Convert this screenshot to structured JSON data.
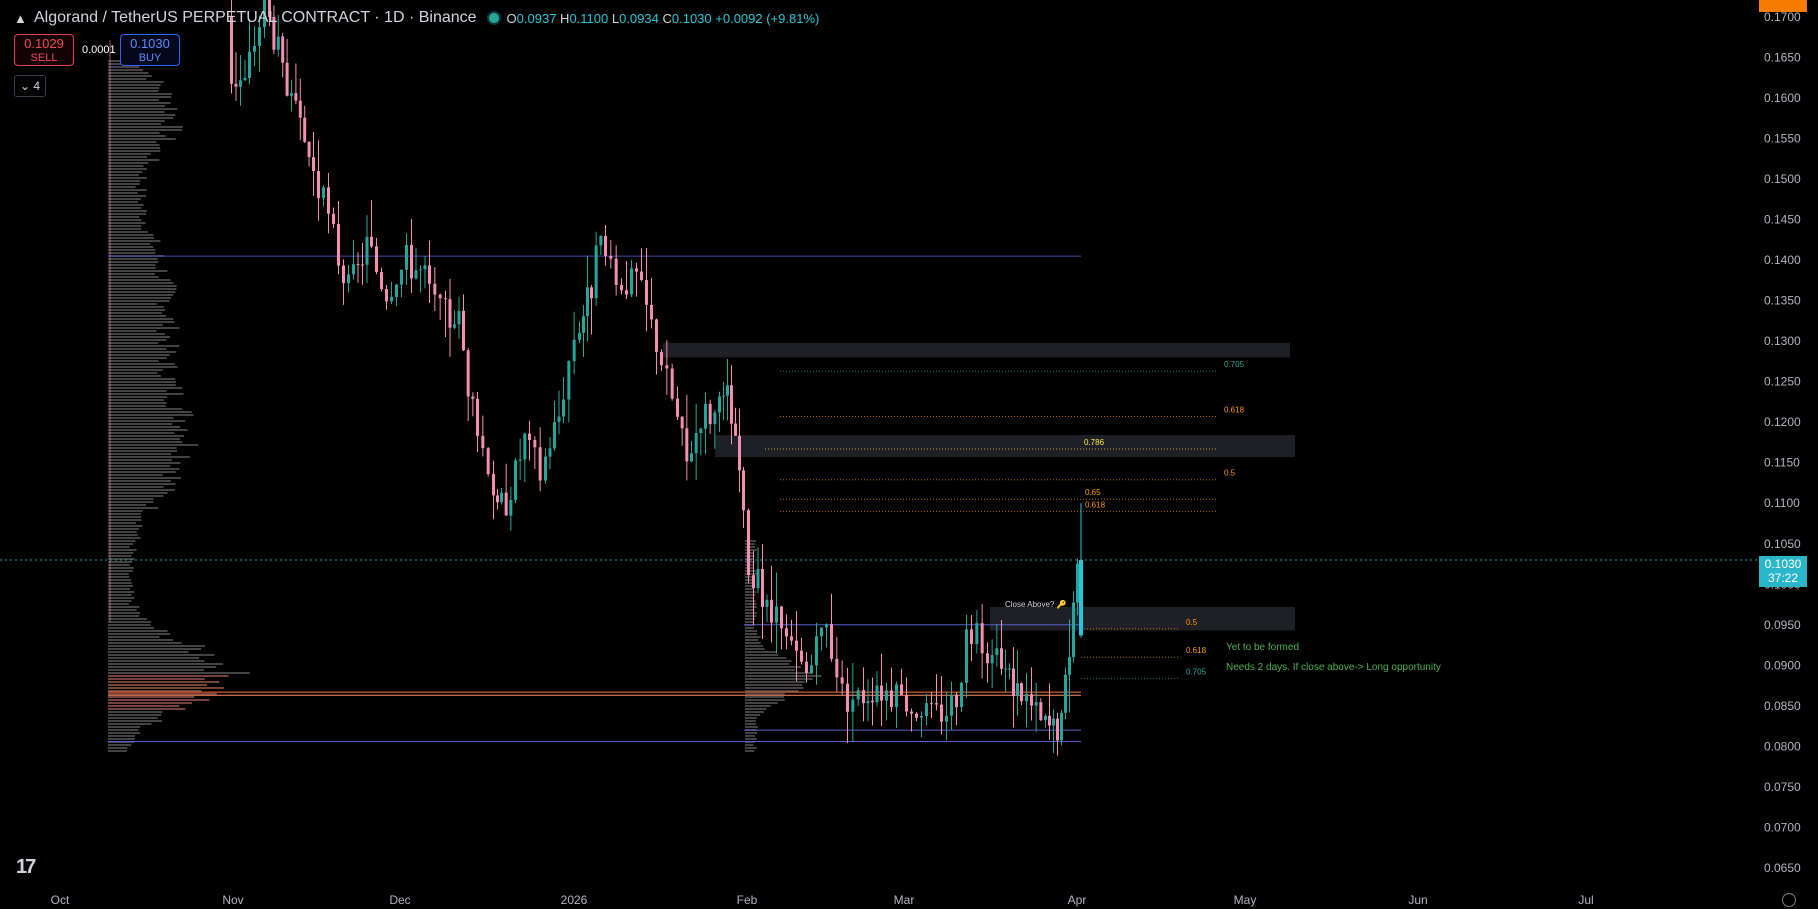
{
  "header": {
    "symbol_title": "Algorand / TetherUS PERPETUAL CONTRACT · 1D · Binance",
    "ohlc": {
      "open_label": "O",
      "open": "0.0937",
      "high_label": "H",
      "high": "0.1100",
      "low_label": "L",
      "low": "0.0934",
      "close_label": "C",
      "close": "0.1030",
      "change": "+0.0092 (+9.81%)"
    }
  },
  "trade": {
    "sell_price": "0.1029",
    "sell_label": "SELL",
    "buy_price": "0.1030",
    "buy_label": "BUY",
    "spread": "0.0001"
  },
  "indicators_toggle": {
    "count": "4"
  },
  "price_tag": {
    "price": "0.1030",
    "countdown": "37:22"
  },
  "icons": [
    "algorand-logo-icon",
    "chevron-down-icon",
    "tradingview-logo-icon",
    "settings-icon"
  ],
  "colors": {
    "up": "#26a69a",
    "down": "#f48fb1",
    "accent": "#2962ff",
    "price_line": "#26c6da",
    "zone": "#1e1f24"
  },
  "chart_data": {
    "type": "candlestick",
    "ylim": [
      0.063,
      0.1715
    ],
    "y_ticks": [
      "0.1700",
      "0.1650",
      "0.1600",
      "0.1550",
      "0.1500",
      "0.1450",
      "0.1400",
      "0.1350",
      "0.1300",
      "0.1250",
      "0.1200",
      "0.1150",
      "0.1100",
      "0.1050",
      "0.1000",
      "0.0950",
      "0.0900",
      "0.0850",
      "0.0800",
      "0.0750",
      "0.0700",
      "0.0650"
    ],
    "x_ticks": [
      "Oct",
      "Nov",
      "Dec",
      "2026",
      "Feb",
      "Mar",
      "Apr",
      "May",
      "Jun",
      "Jul"
    ],
    "last_price": 0.103,
    "annotations": {
      "close_above": "Close Above? 🔑",
      "yet_to_be_formed": "Yet to be formed",
      "needs_days": "Needs 2 days. If close above-> Long opportunity"
    },
    "fib_levels_upper": [
      {
        "label": "0.705",
        "price": 0.1263
      },
      {
        "label": "0.618",
        "price": 0.1207
      },
      {
        "label": "0.786",
        "price": 0.1167
      },
      {
        "label": "0.5",
        "price": 0.1129
      },
      {
        "label": "0.65",
        "price": 0.1105
      },
      {
        "label": "0.618",
        "price": 0.109
      }
    ],
    "fib_levels_lower": [
      {
        "label": "0.5",
        "price": 0.0945
      },
      {
        "label": "0.618",
        "price": 0.091
      },
      {
        "label": "0.705",
        "price": 0.0884
      }
    ],
    "horizontal_lines": [
      {
        "price": 0.1405,
        "color": "#3f4aa8"
      },
      {
        "price": 0.095,
        "color": "#5560c8"
      },
      {
        "price": 0.0867,
        "color": "#ff7043"
      },
      {
        "price": 0.0863,
        "color": "#ff8a65"
      },
      {
        "price": 0.082,
        "color": "#5560c8"
      },
      {
        "price": 0.0806,
        "color": "#5560c8"
      }
    ],
    "zones": [
      {
        "from": 0.128,
        "to": 0.1298
      },
      {
        "from": 0.1157,
        "to": 0.1184
      },
      {
        "from": 0.0943,
        "to": 0.0972
      }
    ]
  }
}
